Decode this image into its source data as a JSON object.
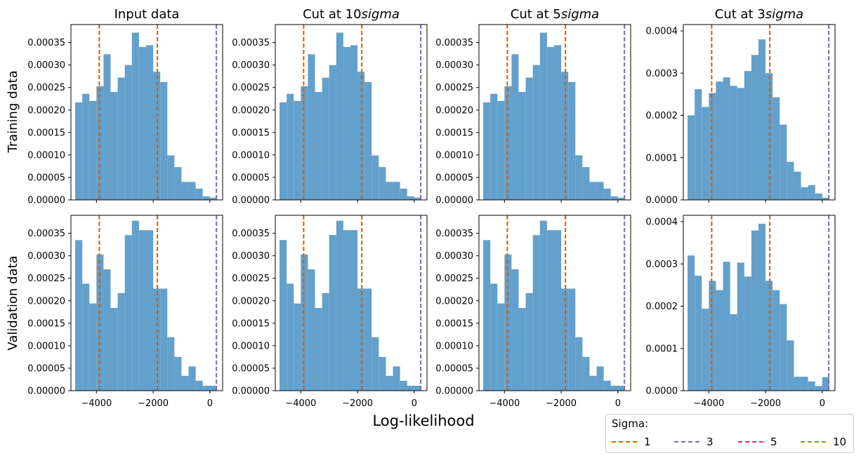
{
  "figure": {
    "xlabel": "Log-likelihood",
    "row_labels": [
      "Training data",
      "Validation data"
    ],
    "col_titles": [
      "Input data",
      "Cut at 10",
      "Cut at 5",
      "Cut at 3"
    ],
    "col_title_suffix": "sigma"
  },
  "legend": {
    "title": "Sigma:",
    "entries": [
      {
        "label": "1",
        "color": "#d95f02"
      },
      {
        "label": "3",
        "color": "#7570b3"
      },
      {
        "label": "5",
        "color": "#e7298a"
      },
      {
        "label": "10",
        "color": "#66a61e"
      }
    ]
  },
  "chart_data": {
    "type": "bar",
    "bar_color": "#5b9bc9",
    "bin_edges": [
      -4750,
      -4500,
      -4250,
      -4000,
      -3750,
      -3500,
      -3250,
      -3000,
      -2750,
      -2500,
      -2250,
      -2000,
      -1750,
      -1500,
      -1250,
      -1000,
      -750,
      -500,
      -250,
      0,
      250
    ],
    "xticks": [
      -4000,
      -2000,
      0
    ],
    "xtick_labels": [
      "−4000",
      "−2000",
      "0"
    ],
    "vlines": [
      {
        "x": -3900,
        "color": "#d95f02",
        "sigma": "1"
      },
      {
        "x": -1850,
        "color": "#d95f02",
        "sigma": "1"
      },
      {
        "x": 230,
        "color": "#7570b3",
        "sigma": "3"
      }
    ],
    "panels": [
      {
        "row": "Training data",
        "col": "Input data",
        "ylim": [
          0,
          0.00039
        ],
        "yticks": [
          "0.00000",
          "0.00005",
          "0.00010",
          "0.00015",
          "0.00020",
          "0.00025",
          "0.00030",
          "0.00035"
        ],
        "values": [
          0.000217,
          0.000236,
          0.00022,
          0.000253,
          0.000324,
          0.00024,
          0.000272,
          0.0003,
          0.000372,
          0.00034,
          0.000344,
          0.000285,
          0.000262,
          9.9e-05,
          7.3e-05,
          4e-05,
          4e-05,
          2.5e-05,
          8e-06,
          5e-06,
          1.3e-05
        ]
      },
      {
        "row": "Training data",
        "col": "Cut at 10",
        "ylim": [
          0,
          0.00039
        ],
        "yticks": [
          "0.00000",
          "0.00005",
          "0.00010",
          "0.00015",
          "0.00020",
          "0.00025",
          "0.00030",
          "0.00035"
        ],
        "values": [
          0.000217,
          0.000236,
          0.00022,
          0.000253,
          0.000324,
          0.00024,
          0.000272,
          0.0003,
          0.000372,
          0.00034,
          0.000344,
          0.000285,
          0.000262,
          9.9e-05,
          7.3e-05,
          4e-05,
          4e-05,
          2.5e-05,
          8e-06,
          5e-06,
          1.3e-05
        ]
      },
      {
        "row": "Training data",
        "col": "Cut at 5",
        "ylim": [
          0,
          0.00039
        ],
        "yticks": [
          "0.00000",
          "0.00005",
          "0.00010",
          "0.00015",
          "0.00020",
          "0.00025",
          "0.00030",
          "0.00035"
        ],
        "values": [
          0.000217,
          0.000236,
          0.00022,
          0.000253,
          0.000324,
          0.00024,
          0.000272,
          0.0003,
          0.000372,
          0.00034,
          0.000344,
          0.000285,
          0.000262,
          9.9e-05,
          7.3e-05,
          4e-05,
          4e-05,
          2.5e-05,
          8e-06,
          5e-06,
          1.3e-05
        ]
      },
      {
        "row": "Training data",
        "col": "Cut at 3",
        "ylim": [
          0,
          0.000415
        ],
        "yticks": [
          "0.0000",
          "0.0001",
          "0.0002",
          "0.0003",
          "0.0004"
        ],
        "values": [
          0.0002,
          0.000262,
          0.00022,
          0.000253,
          0.00028,
          0.00029,
          0.00027,
          0.000265,
          0.000305,
          0.000343,
          0.00038,
          0.0003,
          0.000243,
          0.000178,
          9e-05,
          6.7e-05,
          3e-05,
          3.5e-05,
          1.5e-05,
          5e-06
        ]
      },
      {
        "row": "Validation data",
        "col": "Input data",
        "ylim": [
          0,
          0.00039
        ],
        "yticks": [
          "0.00000",
          "0.00005",
          "0.00010",
          "0.00015",
          "0.00020",
          "0.00025",
          "0.00030",
          "0.00035"
        ],
        "values": [
          0.000335,
          0.000238,
          0.000194,
          0.000303,
          0.00027,
          0.000184,
          0.000217,
          0.000346,
          0.000378,
          0.000357,
          0.000357,
          0.000227,
          0.000227,
          0.000119,
          7.5e-05,
          3.3e-05,
          5.4e-05,
          2.2e-05,
          1.1e-05,
          1.1e-05,
          3.2e-05
        ]
      },
      {
        "row": "Validation data",
        "col": "Cut at 10",
        "ylim": [
          0,
          0.00039
        ],
        "yticks": [
          "0.00000",
          "0.00005",
          "0.00010",
          "0.00015",
          "0.00020",
          "0.00025",
          "0.00030",
          "0.00035"
        ],
        "values": [
          0.000335,
          0.000238,
          0.000194,
          0.000303,
          0.00027,
          0.000184,
          0.000217,
          0.000346,
          0.000378,
          0.000357,
          0.000357,
          0.000227,
          0.000227,
          0.000119,
          7.5e-05,
          3.3e-05,
          5.4e-05,
          2.2e-05,
          1.1e-05,
          1.1e-05,
          3.2e-05
        ]
      },
      {
        "row": "Validation data",
        "col": "Cut at 5",
        "ylim": [
          0,
          0.00039
        ],
        "yticks": [
          "0.00000",
          "0.00005",
          "0.00010",
          "0.00015",
          "0.00020",
          "0.00025",
          "0.00030",
          "0.00035"
        ],
        "values": [
          0.000335,
          0.000238,
          0.000194,
          0.000303,
          0.00027,
          0.000184,
          0.000217,
          0.000346,
          0.000378,
          0.000357,
          0.000357,
          0.000227,
          0.000227,
          0.000119,
          7.5e-05,
          3.3e-05,
          5.4e-05,
          2.2e-05,
          1.1e-05,
          1.1e-05,
          3.2e-05
        ]
      },
      {
        "row": "Validation data",
        "col": "Cut at 3",
        "ylim": [
          0,
          0.000415
        ],
        "yticks": [
          "0.0000",
          "0.0001",
          "0.0002",
          "0.0003",
          "0.0004"
        ],
        "values": [
          0.00032,
          0.000272,
          0.000194,
          0.00026,
          0.000238,
          0.000305,
          0.000181,
          0.000303,
          0.00027,
          0.000379,
          0.000395,
          0.00026,
          0.000238,
          0.000205,
          0.000119,
          3.3e-05,
          3.3e-05,
          2.2e-05,
          1.1e-05,
          3.2e-05
        ]
      }
    ]
  }
}
